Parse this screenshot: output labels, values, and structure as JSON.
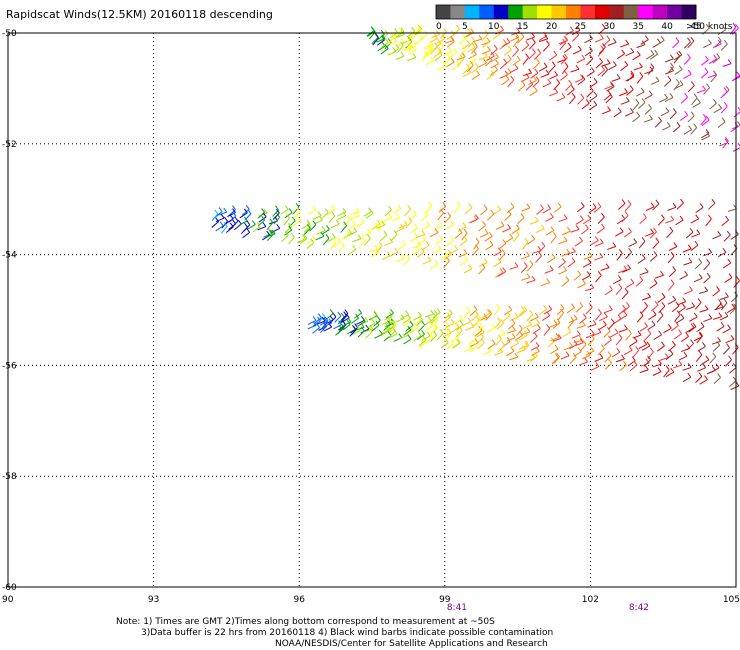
{
  "title": "Rapidscat Winds(12.5KM) 20160118 descending",
  "notes": [
    "Note: 1) Times are GMT 2)Times along bottom correspond to measurement at ~50S",
    "3)Data buffer is 22 hrs from 20160118 4) Black wind barbs indicate possible contamination",
    "NOAA/NESDIS/Center for Satellite Applications and Research"
  ],
  "colorbar": {
    "colors": [
      "#444444",
      "#888888",
      "#00b4ff",
      "#0060ff",
      "#0000c8",
      "#00a000",
      "#a0e000",
      "#ffff00",
      "#ffc800",
      "#ff8000",
      "#ff3030",
      "#e00000",
      "#a02020",
      "#806040",
      "#ff00ff",
      "#c000c0",
      "#7000a0",
      "#300060"
    ],
    "labels": [
      "0",
      "5",
      "10",
      "15",
      "20",
      "25",
      "30",
      "35",
      "40",
      "45",
      ">50 knots"
    ]
  },
  "chart_data": {
    "type": "scatter",
    "title": "Rapidscat Winds(12.5KM) 20160118 descending",
    "xlabel": "",
    "ylabel": "",
    "xlim": [
      90,
      105
    ],
    "ylim": [
      -60,
      -50
    ],
    "x_ticks": [
      "90",
      "93",
      "96",
      "99",
      "102",
      "105"
    ],
    "y_ticks": [
      "-50",
      "-52",
      "-54",
      "-56",
      "-58",
      "-60"
    ],
    "grid": true,
    "time_labels": [
      {
        "x": 99.25,
        "label": "8:41"
      },
      {
        "x": 103.0,
        "label": "8:42"
      }
    ],
    "swaths": [
      {
        "name": "upper swath",
        "lon": [
          97.5,
          105
        ],
        "lat_top": [
          -50.0,
          -50.0
        ],
        "lat_bottom": [
          -50.3,
          -52.1
        ],
        "speed_knots": [
          15,
          40
        ]
      },
      {
        "name": "middle swath",
        "lon": [
          94.3,
          105
        ],
        "lat_top": [
          -53.3,
          -53.2
        ],
        "lat_bottom": [
          -53.6,
          -55.1
        ],
        "speed_knots": [
          10,
          35
        ]
      },
      {
        "name": "lower swath",
        "lon": [
          96.3,
          105
        ],
        "lat_top": [
          -55.2,
          -55.0
        ],
        "lat_bottom": [
          -55.4,
          -56.4
        ],
        "speed_knots": [
          10,
          35
        ]
      }
    ]
  }
}
